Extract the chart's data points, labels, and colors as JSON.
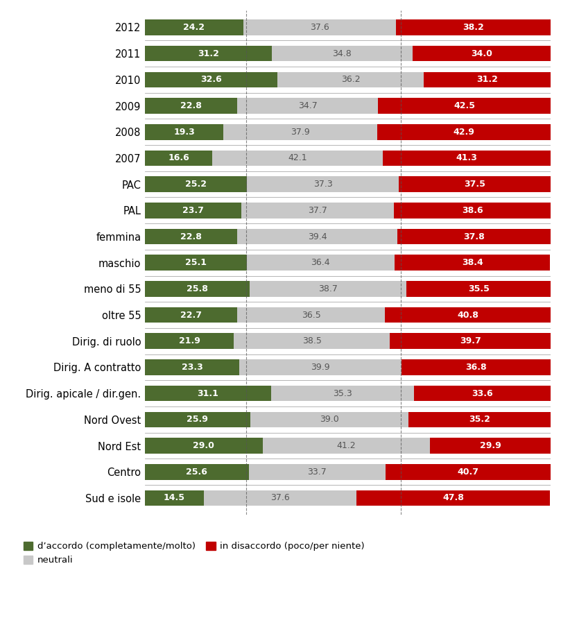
{
  "categories": [
    "Sud e isole",
    "Centro",
    "Nord Est",
    "Nord Ovest",
    "Dirig. apicale / dir.gen.",
    "Dirig. A contratto",
    "Dirig. di ruolo",
    "oltre 55",
    "meno di 55",
    "maschio",
    "femmina",
    "PAL",
    "PAC",
    "2007",
    "2008",
    "2009",
    "2010",
    "2011",
    "2012"
  ],
  "accordo": [
    14.5,
    25.6,
    29.0,
    25.9,
    31.1,
    23.3,
    21.9,
    22.7,
    25.8,
    25.1,
    22.8,
    23.7,
    25.2,
    16.6,
    19.3,
    22.8,
    32.6,
    31.2,
    24.2
  ],
  "neutrali": [
    37.6,
    33.7,
    41.2,
    39.0,
    35.3,
    39.9,
    38.5,
    36.5,
    38.7,
    36.4,
    39.4,
    37.7,
    37.3,
    42.1,
    37.9,
    34.7,
    36.2,
    34.8,
    37.6
  ],
  "disaccordo": [
    47.8,
    40.7,
    29.9,
    35.2,
    33.6,
    36.8,
    39.7,
    40.8,
    35.5,
    38.4,
    37.8,
    38.6,
    37.5,
    41.3,
    42.9,
    42.5,
    31.2,
    34.0,
    38.2
  ],
  "color_accordo": "#4d6b2f",
  "color_neutrali": "#c8c8c8",
  "color_disaccordo": "#c00000",
  "legend_labels_full": [
    "d’accordo (completamente/molto)",
    "neutrali",
    "in disaccordo (poco/per niente)"
  ],
  "bar_height": 0.6,
  "background_color": "#ffffff",
  "label_fontsize": 9.0,
  "tick_fontsize": 10.5
}
